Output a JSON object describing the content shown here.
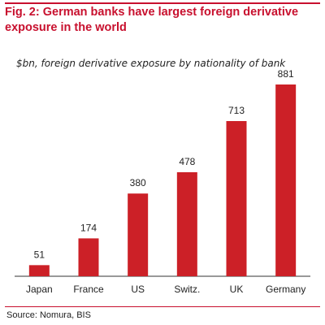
{
  "figure": {
    "title": "Fig. 2: German banks have largest foreign derivative exposure in the world",
    "source": "Source: Nomura, BIS"
  },
  "colors": {
    "accent": "#c8102e",
    "bar": "#cc2027",
    "axis": "#333333"
  },
  "chart_data": {
    "type": "bar",
    "subtitle": "$bn, foreign derivative exposure by nationality of bank",
    "categories": [
      "Japan",
      "France",
      "US",
      "Switz.",
      "UK",
      "Germany"
    ],
    "values": [
      51,
      174,
      380,
      478,
      713,
      881
    ],
    "data_labels": [
      "51",
      "174",
      "380",
      "478",
      "713",
      "881"
    ],
    "xlabel": "",
    "ylabel": "",
    "ylim": [
      0,
      881
    ],
    "grid": false,
    "legend": "none"
  }
}
